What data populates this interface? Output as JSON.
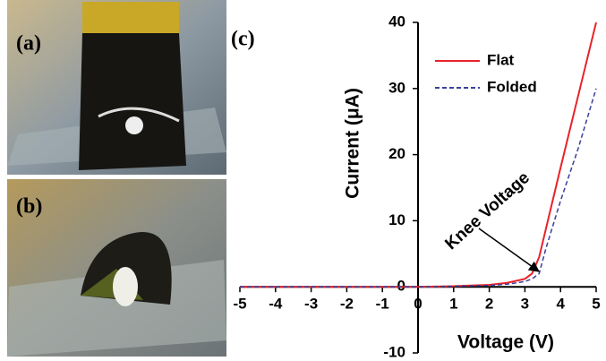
{
  "panel_labels": [
    "(a)",
    "(b)"
  ],
  "chart_data": {
    "type": "line",
    "panel_label": "(c)",
    "xlabel": "Voltage (V)",
    "ylabel": "Current (μA)",
    "annotation": "Knee Voltage",
    "x": [
      -5,
      -4,
      -3,
      -2,
      -1,
      0,
      1,
      2,
      2.5,
      3,
      3.2,
      3.4,
      3.6,
      4,
      4.5,
      5
    ],
    "series": [
      {
        "name": "Flat",
        "color": "#e8232a",
        "dash": false,
        "values": [
          0,
          0,
          0,
          0,
          0,
          0,
          0.1,
          0.3,
          0.6,
          1.2,
          2,
          4.5,
          9,
          18,
          29,
          40
        ]
      },
      {
        "name": "Folded",
        "color": "#3b3f9a",
        "dash": true,
        "values": [
          0,
          0,
          0,
          0,
          0,
          0,
          0.1,
          0.2,
          0.4,
          0.8,
          1.2,
          2,
          6,
          13,
          21,
          30
        ]
      }
    ],
    "xlim": [
      -5,
      5
    ],
    "ylim": [
      -10,
      40
    ],
    "xticks": [
      -5,
      -4,
      -3,
      -2,
      -1,
      0,
      1,
      2,
      3,
      4,
      5
    ],
    "yticks": [
      -10,
      0,
      10,
      20,
      30,
      40
    ],
    "legend": "upper right"
  }
}
